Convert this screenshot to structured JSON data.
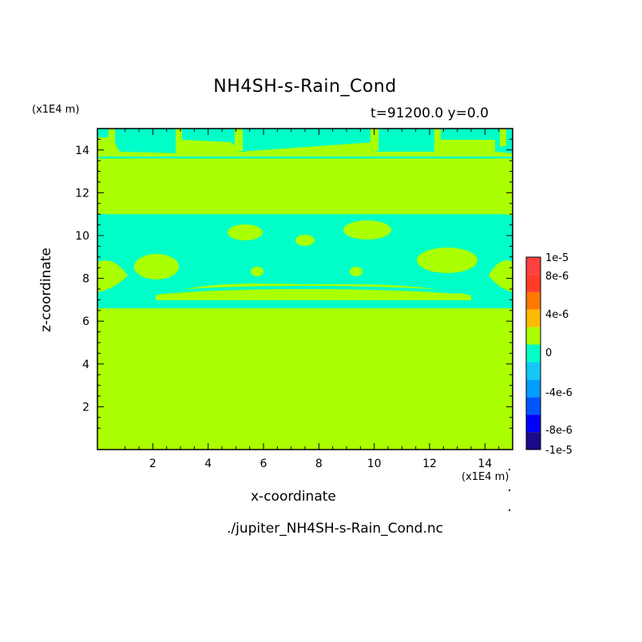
{
  "chart_data": {
    "type": "heatmap",
    "title": "NH4SH-s-Rain_Cond",
    "subtitle": "t=91200.0 y=0.0",
    "xlabel": "x-coordinate",
    "ylabel": "z-coordinate",
    "x_unit": "(x1E4 m)",
    "y_unit": "(x1E4 m)",
    "source_file": "./jupiter_NH4SH-s-Rain_Cond.nc",
    "xlim": [
      0,
      15
    ],
    "ylim": [
      0,
      15
    ],
    "x_ticks": [
      2,
      4,
      6,
      8,
      10,
      12,
      14
    ],
    "y_ticks": [
      2,
      4,
      6,
      8,
      10,
      12,
      14
    ],
    "x_tick_labels": [
      "2",
      "4",
      "6",
      "8",
      "10",
      "12",
      "14"
    ],
    "y_tick_labels": [
      "2",
      "4",
      "6",
      "8",
      "10",
      "12",
      "14"
    ],
    "background_value": "0",
    "regions": [
      {
        "level": "-2e-6 to 0",
        "x": [
          0,
          15
        ],
        "z": [
          6.6,
          11.0
        ]
      },
      {
        "level": "-2e-6 to 0",
        "x": [
          0,
          15
        ],
        "z": [
          13.6,
          15.0
        ]
      }
    ],
    "colorbar": {
      "levels": [
        {
          "color": "#1a0a8c",
          "label": "-1e-5"
        },
        {
          "color": "#0000ff",
          "label": "-8e-6"
        },
        {
          "color": "#0055ff",
          "label": ""
        },
        {
          "color": "#009dff",
          "label": "-4e-6"
        },
        {
          "color": "#14c8f5",
          "label": ""
        },
        {
          "color": "#00ffc8",
          "label": "0"
        },
        {
          "color": "#aaff00",
          "label": ""
        },
        {
          "color": "#ffbb00",
          "label": "4e-6"
        },
        {
          "color": "#ff7800",
          "label": ""
        },
        {
          "color": "#ff3c28",
          "label": "8e-6"
        },
        {
          "color": "#ff4040",
          "label": "1e-5"
        }
      ],
      "tick_labels": [
        "1e-5",
        "8e-6",
        "4e-6",
        "0",
        "-4e-6",
        "-8e-6",
        "-1e-5"
      ]
    },
    "colors": {
      "cyan": "#00ffc8",
      "green": "#aaff00"
    }
  }
}
